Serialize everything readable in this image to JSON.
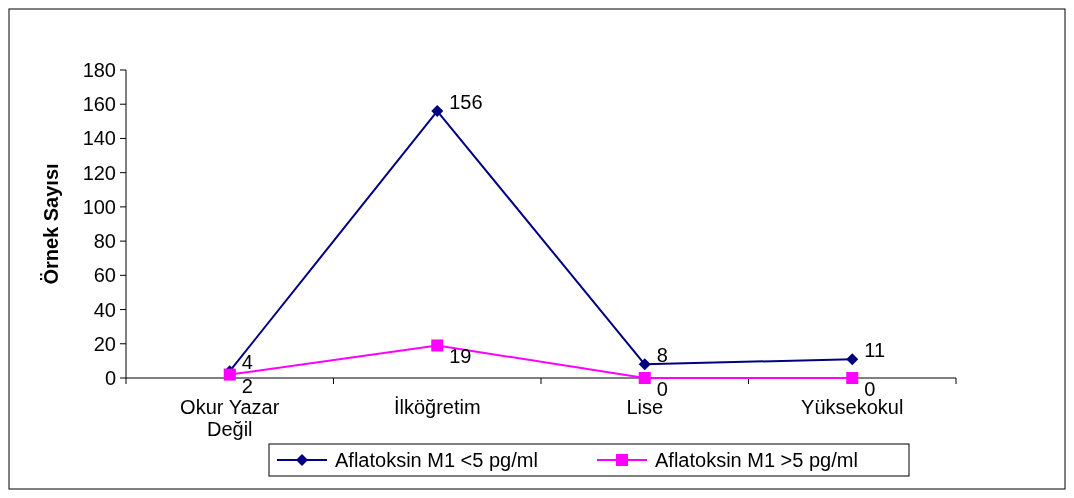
{
  "chart_data": {
    "type": "line",
    "ylabel": "Örnek Sayısı",
    "categories": [
      "Okur Yazar Değil",
      "İlköğretim",
      "Lise",
      "Yüksekokul"
    ],
    "series": [
      {
        "name": "Aflatoksin M1 <5 pg/ml",
        "color": "#000080",
        "values": [
          4,
          156,
          8,
          11
        ],
        "marker": "diamond"
      },
      {
        "name": "Aflatoksin M1 >5 pg/ml",
        "color": "#ff00ff",
        "values": [
          2,
          19,
          0,
          0
        ],
        "marker": "square"
      }
    ],
    "ylim": [
      0,
      180
    ],
    "yticks": [
      0,
      20,
      40,
      60,
      80,
      100,
      120,
      140,
      160,
      180
    ],
    "data_labels": true,
    "legend": "bottom",
    "grid": false
  }
}
